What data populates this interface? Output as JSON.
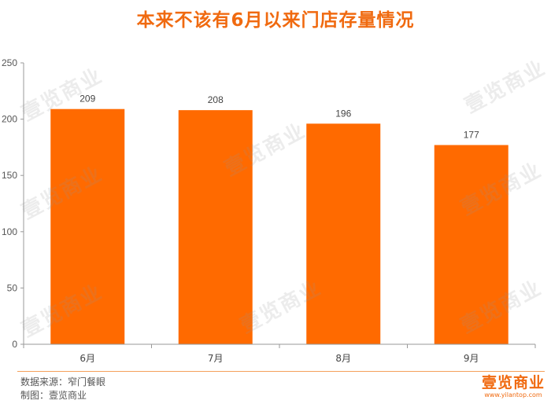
{
  "title": "本来不该有6月以来门店存量情况",
  "chart_data": {
    "type": "bar",
    "categories": [
      "6月",
      "7月",
      "8月",
      "9月"
    ],
    "values": [
      209,
      208,
      196,
      177
    ],
    "data_labels": [
      "209",
      "208",
      "196",
      "177"
    ],
    "ylim": [
      0,
      250
    ],
    "yticks": [
      "0",
      "50",
      "100",
      "150",
      "200",
      "250"
    ],
    "bar_color": "#ff6a00",
    "grid": false,
    "legend": "none"
  },
  "footer": {
    "source": "数据来源：窄门餐眼",
    "credit": "制图：壹览商业"
  },
  "brand": {
    "name": "壹览商业",
    "url": "www.yilantop.com"
  },
  "watermark_text": "壹览商业",
  "colors": {
    "accent": "#f06a10",
    "bar": "#ff6a00",
    "axis": "#999999"
  }
}
